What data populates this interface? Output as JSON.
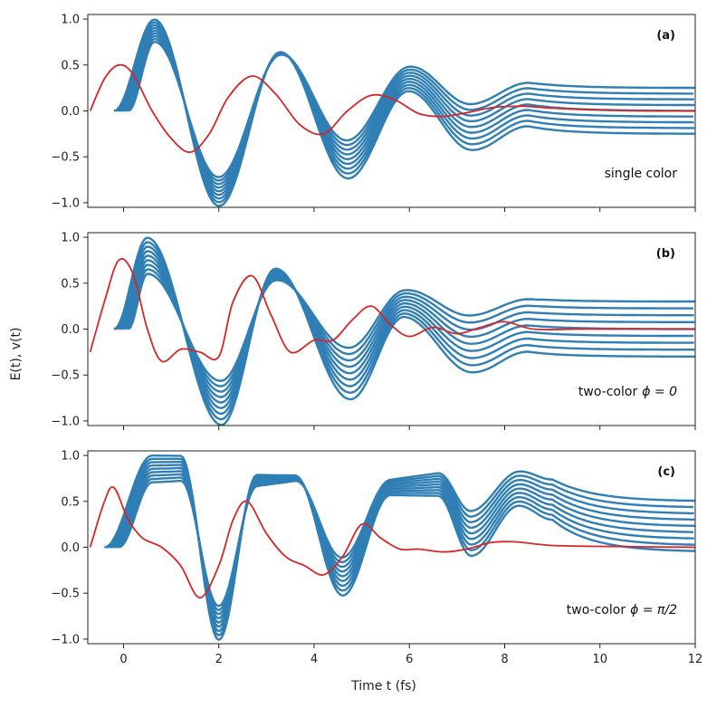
{
  "figure": {
    "xlabel": "Time t (fs)",
    "ylabel": "E(t), v(t)"
  },
  "chart_data": [
    {
      "type": "line",
      "panel": "(a)",
      "annotation": "single color",
      "annotation_phi": "",
      "xlim": [
        -0.75,
        12
      ],
      "ylim": [
        -1.05,
        1.05
      ],
      "xticks": [
        0,
        2,
        4,
        6,
        8,
        10,
        12
      ],
      "yticks": [
        -1.0,
        -0.5,
        0.0,
        0.5,
        1.0
      ],
      "colors": {
        "bundle": "#2f7fb5",
        "field": "#d62728"
      },
      "bundle": {
        "count": 9,
        "t_start": [
          -0.2,
          0.1
        ],
        "amp_start": 1.0,
        "amp_end": 0.75,
        "final_start": -0.25,
        "final_end": 0.25,
        "peaks": [
          [
            0.65,
            1.0
          ],
          [
            2.0,
            -1.0
          ],
          [
            3.3,
            0.72
          ],
          [
            4.7,
            -0.6
          ],
          [
            6.0,
            0.4
          ],
          [
            7.3,
            -0.2
          ],
          [
            8.5,
            0.08
          ]
        ]
      },
      "field": {
        "t": [
          -0.7,
          -0.4,
          -0.1,
          0.2,
          0.6,
          1.0,
          1.4,
          1.8,
          2.2,
          2.7,
          3.2,
          3.7,
          4.2,
          4.7,
          5.2,
          5.7,
          6.2,
          6.7,
          7.2,
          7.8,
          8.4,
          9.0,
          10.0,
          11.0,
          12.0
        ],
        "v": [
          0.0,
          0.35,
          0.5,
          0.4,
          0.0,
          -0.3,
          -0.45,
          -0.25,
          0.15,
          0.38,
          0.18,
          -0.15,
          -0.25,
          0.0,
          0.17,
          0.12,
          -0.03,
          -0.06,
          -0.02,
          0.04,
          0.05,
          0.03,
          0.01,
          0.0,
          0.0
        ]
      }
    },
    {
      "type": "line",
      "panel": "(b)",
      "annotation": "two-color",
      "annotation_phi": "ϕ = 0",
      "xlim": [
        -0.75,
        12
      ],
      "ylim": [
        -1.05,
        1.05
      ],
      "xticks": [
        0,
        2,
        4,
        6,
        8,
        10,
        12
      ],
      "yticks": [
        -1.0,
        -0.5,
        0.0,
        0.5,
        1.0
      ],
      "colors": {
        "bundle": "#2f7fb5",
        "field": "#d62728"
      },
      "bundle": {
        "count": 9,
        "t_start": [
          -0.2,
          0.1
        ],
        "amp_start": 1.0,
        "amp_end": 0.6,
        "final_start": -0.3,
        "final_end": 0.3,
        "peaks": [
          [
            0.5,
            1.0
          ],
          [
            2.05,
            -1.0
          ],
          [
            3.2,
            0.75
          ],
          [
            4.75,
            -0.6
          ],
          [
            5.9,
            0.35
          ],
          [
            7.3,
            -0.2
          ],
          [
            8.5,
            0.05
          ]
        ]
      },
      "field": {
        "t": [
          -0.7,
          -0.4,
          -0.1,
          0.2,
          0.5,
          0.8,
          1.2,
          1.6,
          2.0,
          2.3,
          2.7,
          3.1,
          3.5,
          4.0,
          4.4,
          4.8,
          5.2,
          5.6,
          6.0,
          6.5,
          7.0,
          7.5,
          8.0,
          8.6,
          9.5,
          10.5,
          12.0
        ],
        "v": [
          -0.25,
          0.3,
          0.75,
          0.6,
          0.0,
          -0.35,
          -0.22,
          -0.25,
          -0.3,
          0.3,
          0.58,
          0.15,
          -0.25,
          -0.12,
          -0.12,
          0.1,
          0.25,
          0.05,
          -0.08,
          0.02,
          -0.05,
          0.02,
          0.08,
          0.0,
          0.0,
          0.0,
          0.0
        ]
      }
    },
    {
      "type": "line",
      "panel": "(c)",
      "annotation": "two-color",
      "annotation_phi": "ϕ = π/2",
      "xlim": [
        -0.75,
        12
      ],
      "ylim": [
        -1.05,
        1.05
      ],
      "xticks": [
        0,
        2,
        4,
        6,
        8,
        10,
        12
      ],
      "yticks": [
        -1.0,
        -0.5,
        0.0,
        0.5,
        1.0
      ],
      "colors": {
        "bundle": "#2f7fb5",
        "field": "#d62728"
      },
      "bundle": {
        "count": 9,
        "t_start": [
          -0.4,
          -0.1
        ],
        "amp_start": 1.0,
        "amp_end": 0.7,
        "final_start": -0.05,
        "final_end": 0.5,
        "peaks": [
          [
            0.6,
            1.0
          ],
          [
            1.2,
            1.0
          ],
          [
            2.0,
            -1.0
          ],
          [
            2.8,
            0.8
          ],
          [
            3.6,
            0.8
          ],
          [
            4.6,
            -0.5
          ],
          [
            5.6,
            0.6
          ],
          [
            6.6,
            0.6
          ],
          [
            7.3,
            -0.05
          ],
          [
            8.3,
            0.5
          ],
          [
            9.0,
            0.35
          ]
        ]
      },
      "field": {
        "t": [
          -0.7,
          -0.4,
          -0.2,
          0.1,
          0.4,
          0.8,
          1.2,
          1.6,
          2.0,
          2.3,
          2.6,
          3.0,
          3.4,
          3.8,
          4.2,
          4.6,
          5.0,
          5.4,
          5.8,
          6.2,
          6.7,
          7.2,
          7.7,
          8.2,
          9.0,
          10.0,
          12.0
        ],
        "v": [
          0.0,
          0.5,
          0.65,
          0.3,
          0.1,
          0.0,
          -0.2,
          -0.55,
          -0.2,
          0.3,
          0.5,
          0.15,
          -0.1,
          -0.2,
          -0.3,
          -0.1,
          0.25,
          0.1,
          -0.02,
          -0.02,
          -0.05,
          -0.02,
          0.05,
          0.06,
          0.02,
          0.01,
          0.0
        ]
      }
    }
  ]
}
